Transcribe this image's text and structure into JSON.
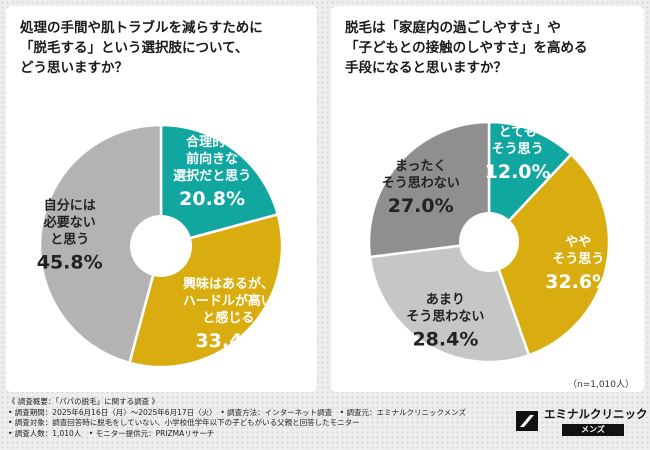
{
  "chart_data": [
    {
      "type": "pie",
      "title": [
        "処理の手間や肌トラブルを減らすために",
        "「脱毛する」という選択肢について、",
        "どう思いますか？"
      ],
      "slices": [
        {
          "label": [
            "合理的で",
            "前向きな",
            "選択だと思う"
          ],
          "value": 20.8,
          "color": "#12a6a0",
          "text_color": "#ffffff"
        },
        {
          "label": [
            "興味はあるが、",
            "ハードルが高い",
            "と感じる"
          ],
          "value": 33.4,
          "color": "#d9ad0f",
          "text_color": "#ffffff"
        },
        {
          "label": [
            "自分には",
            "必要ない",
            "と思う"
          ],
          "value": 45.8,
          "color": "#b3b3b3",
          "text_color": "#222222"
        }
      ]
    },
    {
      "type": "pie",
      "title": [
        "脱毛は「家庭内の過ごしやすさ」や",
        "「子どもとの接触のしやすさ」を高める",
        "手段になると思いますか？"
      ],
      "slices": [
        {
          "label": [
            "とても",
            "そう思う"
          ],
          "value": 12.0,
          "color": "#12a6a0",
          "text_color": "#ffffff"
        },
        {
          "label": [
            "やや",
            "そう思う"
          ],
          "value": 32.6,
          "color": "#d9ad0f",
          "text_color": "#ffffff"
        },
        {
          "label": [
            "あまり",
            "そう思わない"
          ],
          "value": 28.4,
          "color": "#c6c6c6",
          "text_color": "#222222"
        },
        {
          "label": [
            "まったく",
            "そう思わない"
          ],
          "value": 27.0,
          "color": "#8f8f8f",
          "text_color": "#222222"
        }
      ]
    }
  ],
  "sample_size": "（n=1,010人）",
  "footer": [
    "《 調査概要：「パパの脱毛」に関する調査 》",
    "• 調査期間：2025年6月16日（月）～2025年6月17日（火）　• 調査方法：インターネット調査　• 調査元：エミナルクリニックメンズ",
    "• 調査対象：調査回答時に脱毛をしていない、小学校低学年以下の子どもがいる父親と回答したモニター",
    "• 調査人数：1,010人　• モニター提供元：PRIZMAリサーチ"
  ],
  "logo": {
    "name": "エミナルクリニック",
    "sub": "メンズ"
  }
}
